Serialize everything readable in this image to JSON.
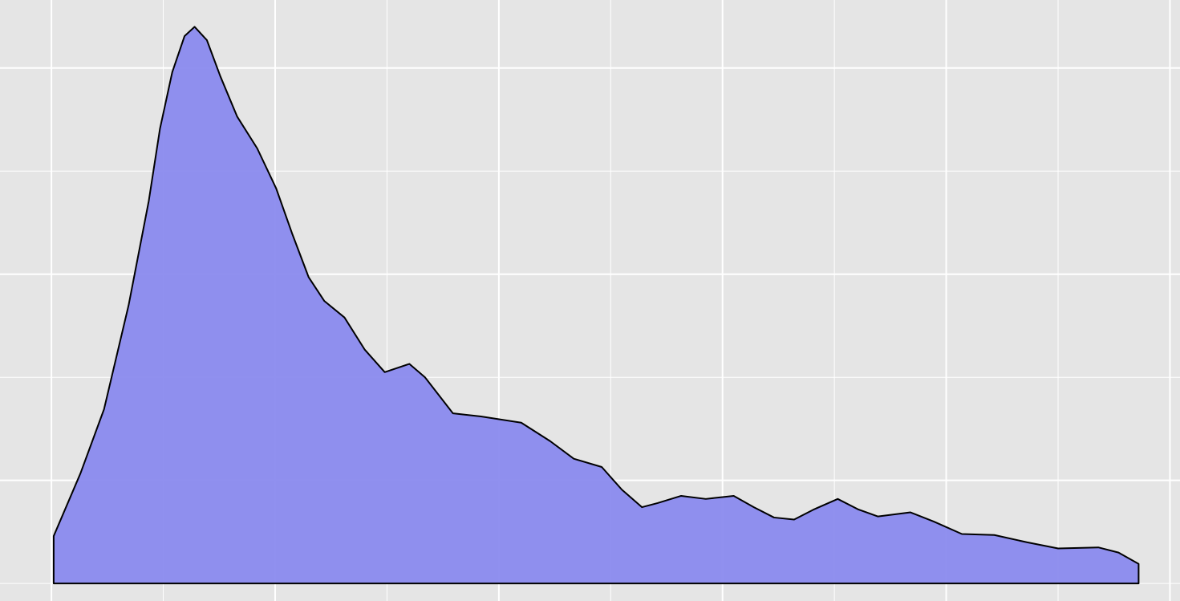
{
  "chart_data": {
    "type": "area",
    "x": [
      0.02,
      0.26,
      0.47,
      0.69,
      0.87,
      0.97,
      1.08,
      1.19,
      1.28,
      1.39,
      1.51,
      1.66,
      1.84,
      2.01,
      2.15,
      2.3,
      2.44,
      2.62,
      2.8,
      2.98,
      3.2,
      3.34,
      3.59,
      3.84,
      4.2,
      4.46,
      4.67,
      4.92,
      5.1,
      5.28,
      5.42,
      5.63,
      5.85,
      6.1,
      6.28,
      6.46,
      6.64,
      6.82,
      7.03,
      7.21,
      7.39,
      7.68,
      7.89,
      8.14,
      8.43,
      8.72,
      9.0,
      9.36,
      9.54,
      9.72
    ],
    "values": [
      0.46,
      1.07,
      1.69,
      2.7,
      3.71,
      4.41,
      4.96,
      5.31,
      5.4,
      5.27,
      4.92,
      4.53,
      4.22,
      3.83,
      3.4,
      2.97,
      2.74,
      2.58,
      2.27,
      2.05,
      2.13,
      2.0,
      1.65,
      1.62,
      1.56,
      1.38,
      1.21,
      1.13,
      0.91,
      0.74,
      0.78,
      0.85,
      0.82,
      0.85,
      0.74,
      0.64,
      0.62,
      0.72,
      0.82,
      0.72,
      0.65,
      0.69,
      0.6,
      0.48,
      0.47,
      0.4,
      0.34,
      0.35,
      0.3,
      0.19
    ],
    "color": "#8a8aee",
    "xlim": [
      -0.46,
      10.09
    ],
    "ylim": [
      -0.17,
      5.66
    ],
    "xticks": [
      0,
      1,
      2,
      3,
      4,
      5,
      6,
      7,
      8,
      9,
      10
    ],
    "yticks": [
      0,
      1,
      2,
      3,
      4,
      5
    ],
    "grid": true
  }
}
